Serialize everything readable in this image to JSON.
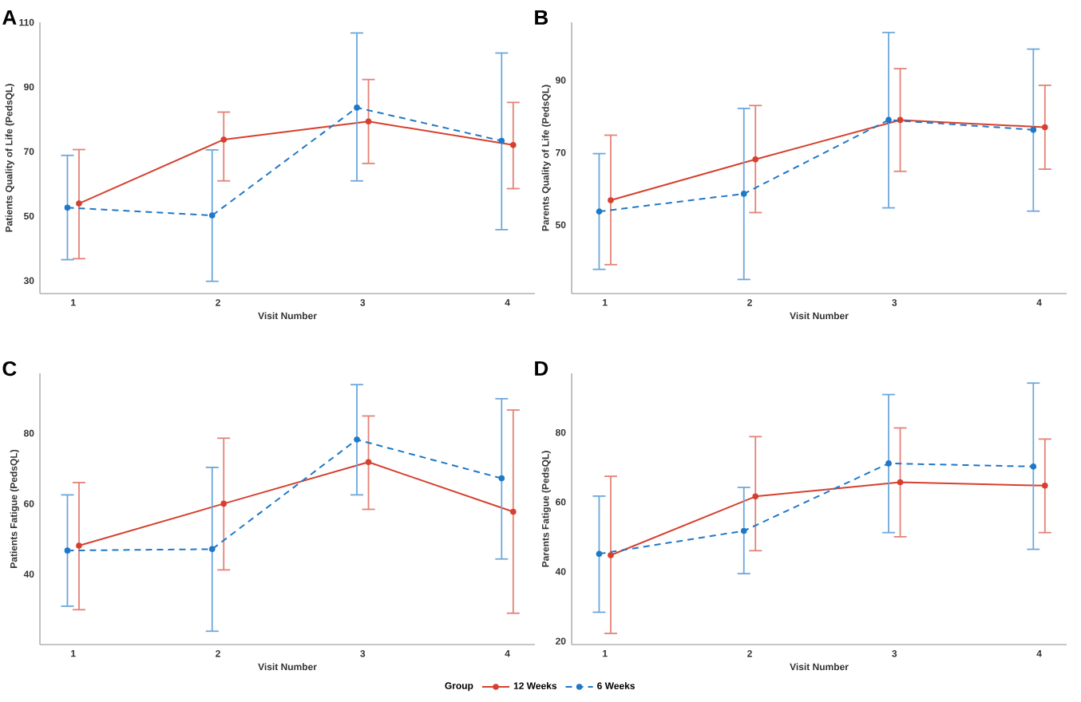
{
  "chart_data": [
    {
      "type": "line",
      "title": "A",
      "xlabel": "Visit Number",
      "ylabel": "Patients Quality of Life (PedsQL)",
      "categories": [
        "1",
        "2",
        "3",
        "4"
      ],
      "ylim": [
        26,
        110
      ],
      "yticks": [
        30,
        50,
        70,
        90,
        110
      ],
      "marker": "circle",
      "legend": "bottom",
      "legend_title": "Group",
      "series": [
        {
          "name": "12 Weeks",
          "color": "#d6402f",
          "line_style": "solid",
          "values": [
            53.9,
            73.7,
            79.3,
            72.0
          ],
          "errors": [
            [
              36.8,
              70.6
            ],
            [
              60.9,
              82.2
            ],
            [
              66.3,
              92.3
            ],
            [
              58.5,
              85.2
            ]
          ]
        },
        {
          "name": "6 Weeks",
          "color": "#1f78c8",
          "line_style": "dashed",
          "values": [
            52.6,
            50.2,
            83.6,
            73.3
          ],
          "errors": [
            [
              36.5,
              68.8
            ],
            [
              29.8,
              70.5
            ],
            [
              60.9,
              106.7
            ],
            [
              45.8,
              100.5
            ]
          ]
        }
      ]
    },
    {
      "type": "line",
      "title": "B",
      "xlabel": "Visit Number",
      "ylabel": "Parents Quality of Life (PedsQL)",
      "categories": [
        "1",
        "2",
        "3",
        "4"
      ],
      "ylim": [
        31,
        106
      ],
      "yticks": [
        50,
        70,
        90
      ],
      "marker": "circle",
      "series": [
        {
          "color": "#d6402f",
          "line_style": "solid",
          "values": [
            56.8,
            68.1,
            79.0,
            77.0
          ],
          "errors": [
            [
              39.0,
              74.8
            ],
            [
              53.4,
              83.0
            ],
            [
              64.8,
              93.2
            ],
            [
              65.4,
              88.6
            ]
          ]
        },
        {
          "color": "#1f78c8",
          "line_style": "dashed",
          "values": [
            53.7,
            58.6,
            79.0,
            76.3
          ],
          "errors": [
            [
              37.7,
              69.7
            ],
            [
              34.9,
              82.2
            ],
            [
              54.7,
              103.2
            ],
            [
              53.8,
              98.6
            ]
          ]
        }
      ]
    },
    {
      "type": "line",
      "title": "C",
      "xlabel": "Visit Number",
      "ylabel": "Patients Fatigue (PedsQL)",
      "categories": [
        "1",
        "2",
        "3",
        "4"
      ],
      "ylim": [
        20,
        97
      ],
      "yticks": [
        40,
        60,
        80
      ],
      "marker": "circle",
      "series": [
        {
          "color": "#d6402f",
          "line_style": "solid",
          "values": [
            48.1,
            60.0,
            71.8,
            57.7
          ],
          "errors": [
            [
              29.9,
              66.0
            ],
            [
              41.2,
              78.6
            ],
            [
              58.4,
              84.9
            ],
            [
              28.9,
              86.6
            ]
          ]
        },
        {
          "color": "#1f78c8",
          "line_style": "dashed",
          "values": [
            46.7,
            47.1,
            78.2,
            67.2
          ],
          "errors": [
            [
              30.9,
              62.5
            ],
            [
              23.8,
              70.3
            ],
            [
              62.5,
              93.8
            ],
            [
              44.3,
              89.8
            ]
          ]
        }
      ]
    },
    {
      "type": "line",
      "title": "D",
      "xlabel": "Visit Number",
      "ylabel": "Parents Fatigue (PedsQL)",
      "categories": [
        "1",
        "2",
        "3",
        "4"
      ],
      "ylim": [
        19,
        97
      ],
      "yticks": [
        20,
        40,
        60,
        80
      ],
      "marker": "circle",
      "series": [
        {
          "color": "#d6402f",
          "line_style": "solid",
          "values": [
            44.7,
            61.6,
            65.7,
            64.7
          ],
          "errors": [
            [
              22.2,
              67.4
            ],
            [
              46.0,
              78.8
            ],
            [
              50.0,
              81.3
            ],
            [
              51.2,
              78.1
            ]
          ]
        },
        {
          "color": "#1f78c8",
          "line_style": "dashed",
          "values": [
            45.1,
            51.7,
            71.1,
            70.2
          ],
          "errors": [
            [
              28.3,
              61.7
            ],
            [
              39.4,
              64.2
            ],
            [
              51.2,
              90.9
            ],
            [
              46.4,
              94.2
            ]
          ]
        }
      ]
    }
  ]
}
